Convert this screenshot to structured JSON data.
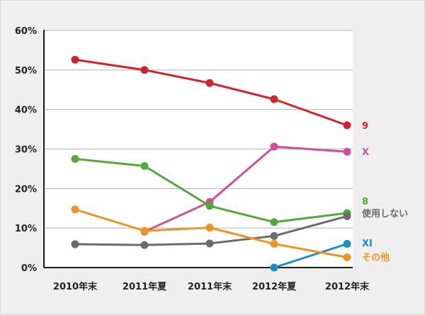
{
  "chart_data": {
    "type": "line",
    "title": "",
    "xlabel": "",
    "ylabel": "",
    "categories": [
      "2010年末",
      "2011年夏",
      "2011年末",
      "2012年夏",
      "2012年末"
    ],
    "ylim": [
      0,
      60
    ],
    "yticks": [
      "0%",
      "10%",
      "20%",
      "30%",
      "40%",
      "50%",
      "60%"
    ],
    "grid": true,
    "legend": "end-of-line labels",
    "series": [
      {
        "name": "9",
        "color": "#d2232a",
        "values": [
          52.6,
          50.0,
          46.7,
          42.6,
          36.0
        ]
      },
      {
        "name": "X",
        "color": "#cf4f98",
        "values": [
          null,
          9.1,
          16.6,
          30.6,
          29.3
        ]
      },
      {
        "name": "8",
        "color": "#53a93f",
        "values": [
          27.5,
          25.7,
          15.6,
          11.5,
          13.8
        ]
      },
      {
        "name": "使用しない",
        "color": "#6b6b6b",
        "values": [
          5.9,
          5.7,
          6.1,
          8.0,
          13.0
        ]
      },
      {
        "name": "XI",
        "color": "#1a8cc8",
        "values": [
          null,
          null,
          null,
          0.0,
          6.0
        ]
      },
      {
        "name": "その他",
        "color": "#ef9223",
        "values": [
          14.7,
          9.3,
          10.1,
          6.0,
          2.6
        ]
      }
    ]
  }
}
